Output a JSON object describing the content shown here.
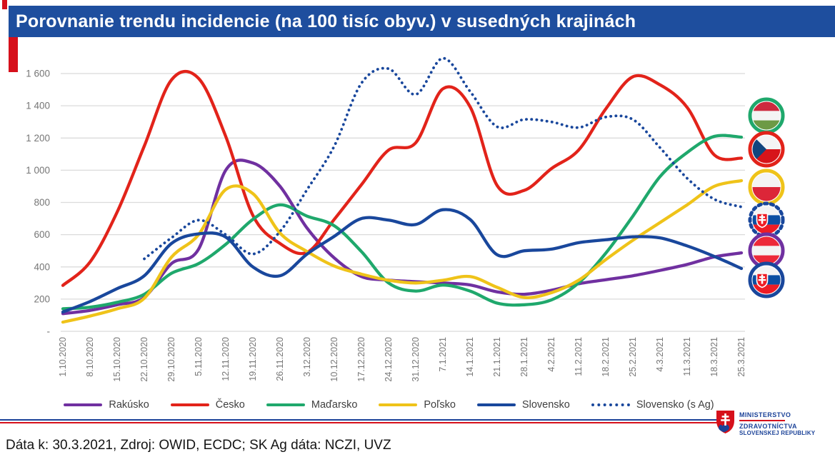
{
  "title": "Porovnanie trendu incidencie (na 100 tisíc obyv.) v susedných krajinách",
  "colors": {
    "titlebar": "#1e4e9e",
    "accent_red": "#d6101b",
    "grid": "#dbdbdb",
    "axis_text": "#767676",
    "austria": "#7030a0",
    "czechia": "#e2231a",
    "hungary": "#1fa86c",
    "poland": "#efc319",
    "slovakia": "#19479c"
  },
  "chart_data": {
    "type": "line",
    "title": "Porovnanie trendu incidencie (na 100 tisíc obyv.) v susedných krajinách",
    "xlabel": "",
    "ylabel": "",
    "ylim": [
      0,
      1600
    ],
    "grid": true,
    "legend_position": "bottom",
    "y_ticks": [
      {
        "value": 1600,
        "label": "1 600"
      },
      {
        "value": 1400,
        "label": "1 400"
      },
      {
        "value": 1200,
        "label": "1 200"
      },
      {
        "value": 1000,
        "label": "1 000"
      },
      {
        "value": 800,
        "label": "800"
      },
      {
        "value": 600,
        "label": "600"
      },
      {
        "value": 400,
        "label": "400"
      },
      {
        "value": 200,
        "label": "200"
      },
      {
        "value": 0,
        "label": "-"
      }
    ],
    "categories": [
      "1.10.2020",
      "8.10.2020",
      "15.10.2020",
      "22.10.2020",
      "29.10.2020",
      "5.11.2020",
      "12.11.2020",
      "19.11.2020",
      "26.11.2020",
      "3.12.2020",
      "10.12.2020",
      "17.12.2020",
      "24.12.2020",
      "31.12.2020",
      "7.1.2021",
      "14.1.2021",
      "21.1.2021",
      "28.1.2021",
      "4.2.2021",
      "11.2.2021",
      "18.2.2021",
      "25.2.2021",
      "4.3.2021",
      "11.3.2021",
      "18.3.2021",
      "25.3.2021"
    ],
    "series": [
      {
        "name": "Rakúsko",
        "color": "#7030a0",
        "style": "solid",
        "values": [
          110,
          130,
          165,
          210,
          420,
          510,
          1000,
          1045,
          900,
          640,
          455,
          340,
          318,
          308,
          300,
          288,
          245,
          230,
          255,
          295,
          320,
          345,
          378,
          415,
          462,
          487
        ]
      },
      {
        "name": "Česko",
        "color": "#e2231a",
        "style": "solid",
        "values": [
          285,
          430,
          740,
          1150,
          1560,
          1570,
          1210,
          720,
          545,
          490,
          695,
          910,
          1125,
          1170,
          1505,
          1395,
          905,
          875,
          1010,
          1125,
          1380,
          1580,
          1530,
          1390,
          1095,
          1075
        ]
      },
      {
        "name": "Maďarsko",
        "color": "#1fa86c",
        "style": "solid",
        "values": [
          140,
          150,
          180,
          230,
          360,
          420,
          540,
          695,
          785,
          715,
          655,
          495,
          300,
          250,
          287,
          250,
          175,
          165,
          195,
          300,
          485,
          715,
          960,
          1110,
          1210,
          1205
        ]
      },
      {
        "name": "Poľsko",
        "color": "#efc319",
        "style": "solid",
        "values": [
          57,
          95,
          140,
          205,
          460,
          600,
          880,
          855,
          610,
          495,
          405,
          355,
          317,
          300,
          317,
          340,
          273,
          210,
          240,
          317,
          445,
          565,
          675,
          785,
          900,
          935
        ]
      },
      {
        "name": "Slovensko",
        "color": "#19479c",
        "style": "solid",
        "values": [
          120,
          185,
          265,
          345,
          545,
          605,
          585,
          400,
          345,
          480,
          590,
          700,
          690,
          663,
          755,
          695,
          475,
          500,
          510,
          550,
          568,
          587,
          580,
          530,
          465,
          390
        ]
      },
      {
        "name": "Slovensko (s Ag)",
        "color": "#19479c",
        "style": "dotted",
        "values": [
          null,
          null,
          null,
          450,
          580,
          690,
          600,
          480,
          620,
          880,
          1150,
          1540,
          1630,
          1470,
          1695,
          1490,
          1270,
          1315,
          1300,
          1265,
          1330,
          1315,
          1140,
          950,
          820,
          772
        ]
      }
    ]
  },
  "flags": [
    {
      "country": "Maďarsko",
      "ring": "#1fa86c",
      "flag": "HU",
      "dotted": false
    },
    {
      "country": "Česko",
      "ring": "#e2231a",
      "flag": "CZ",
      "dotted": false
    },
    {
      "country": "Poľsko",
      "ring": "#efc319",
      "flag": "PL",
      "dotted": false
    },
    {
      "country": "Slovensko (s Ag)",
      "ring": "#19479c",
      "flag": "SK",
      "dotted": true
    },
    {
      "country": "Rakúsko",
      "ring": "#7030a0",
      "flag": "AT",
      "dotted": false
    },
    {
      "country": "Slovensko",
      "ring": "#19479c",
      "flag": "SK",
      "dotted": false
    }
  ],
  "ministry": {
    "line1": "MINISTERSTVO",
    "line2": "ZDRAVOTNÍCTVA",
    "line3": "SLOVENSKEJ REPUBLIKY"
  },
  "footer_note": "Dáta k: 30.3.2021, Zdroj: OWID, ECDC; SK Ag dáta: NCZI, UVZ"
}
